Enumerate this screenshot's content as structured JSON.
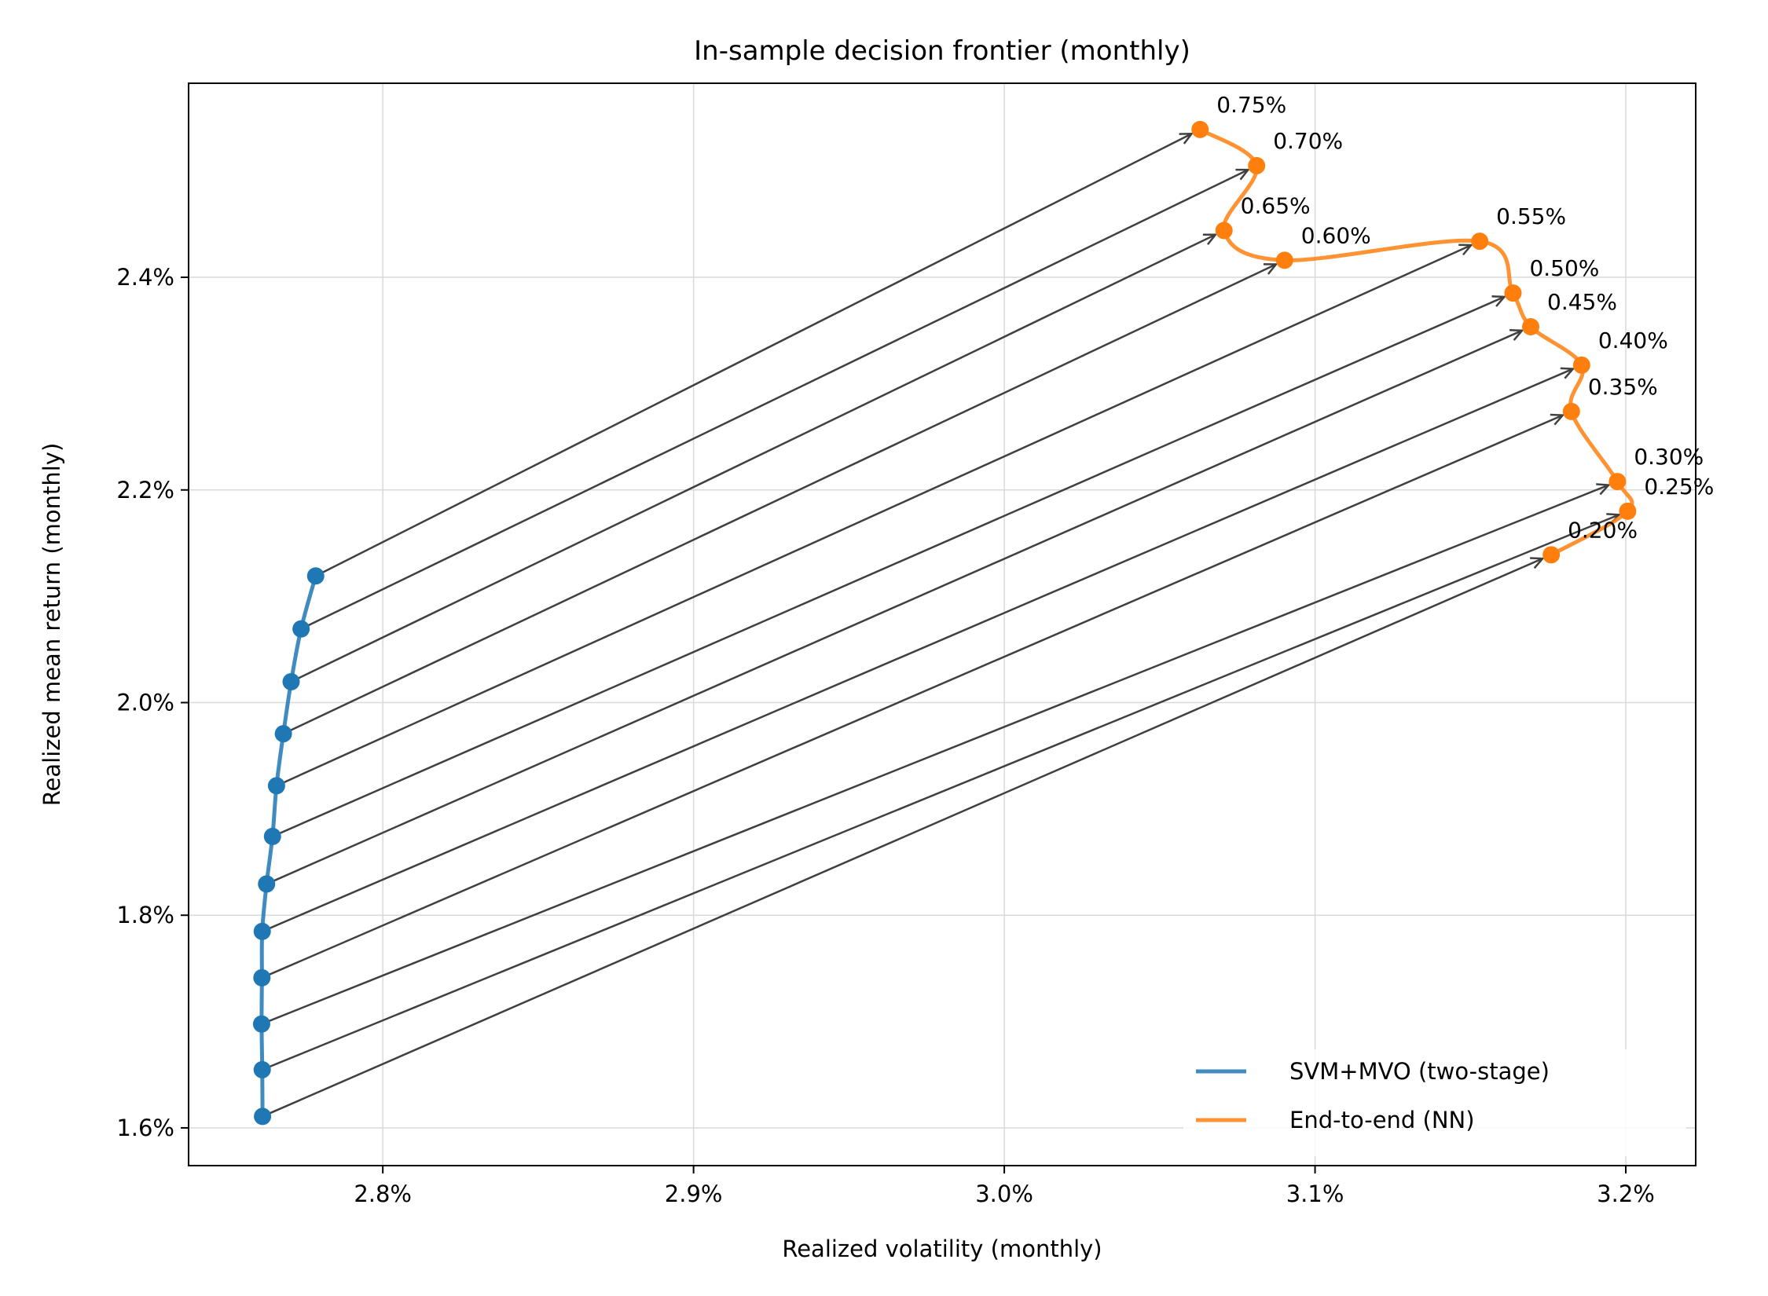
{
  "chart_data": {
    "type": "line",
    "title": "In-sample decision frontier (monthly)",
    "xlabel": "Realized volatility (monthly)",
    "ylabel": "Realized mean return (monthly)",
    "xlim": [
      2.7375,
      3.2225
    ],
    "ylim": [
      1.5645,
      2.5825
    ],
    "x_ticks": [
      {
        "value": 2.8,
        "label": "2.8%"
      },
      {
        "value": 2.9,
        "label": "2.9%"
      },
      {
        "value": 3.0,
        "label": "3.0%"
      },
      {
        "value": 3.1,
        "label": "3.1%"
      },
      {
        "value": 3.2,
        "label": "3.2%"
      }
    ],
    "y_ticks": [
      {
        "value": 1.6,
        "label": "1.6%"
      },
      {
        "value": 1.8,
        "label": "1.8%"
      },
      {
        "value": 2.0,
        "label": "2.0%"
      },
      {
        "value": 2.2,
        "label": "2.2%"
      },
      {
        "value": 2.4,
        "label": "2.4%"
      }
    ],
    "grid": true,
    "legend_position": "lower-right",
    "arrow_color": "#404040",
    "series": [
      {
        "name": "SVM+MVO (two-stage)",
        "color": "#1f77b4",
        "points": [
          {
            "x": 2.7613,
            "y": 1.6108
          },
          {
            "x": 2.7612,
            "y": 1.6547
          },
          {
            "x": 2.761,
            "y": 1.6977
          },
          {
            "x": 2.7611,
            "y": 1.7412
          },
          {
            "x": 2.7612,
            "y": 1.7848
          },
          {
            "x": 2.7626,
            "y": 1.8294
          },
          {
            "x": 2.7645,
            "y": 1.8741
          },
          {
            "x": 2.7658,
            "y": 1.9218
          },
          {
            "x": 2.768,
            "y": 1.9707
          },
          {
            "x": 2.7705,
            "y": 2.0196
          },
          {
            "x": 2.7737,
            "y": 2.0693
          },
          {
            "x": 2.7784,
            "y": 2.1191
          }
        ]
      },
      {
        "name": "End-to-end (NN)",
        "color": "#ff7f0e",
        "points": [
          {
            "x": 3.176,
            "y": 2.139,
            "label": "0.20%"
          },
          {
            "x": 3.2006,
            "y": 2.18,
            "label": "0.25%"
          },
          {
            "x": 3.1973,
            "y": 2.2079,
            "label": "0.30%"
          },
          {
            "x": 3.1825,
            "y": 2.2738,
            "label": "0.35%"
          },
          {
            "x": 3.1858,
            "y": 2.3174,
            "label": "0.40%"
          },
          {
            "x": 3.1694,
            "y": 2.3535,
            "label": "0.45%"
          },
          {
            "x": 3.1637,
            "y": 2.3852,
            "label": "0.50%"
          },
          {
            "x": 3.153,
            "y": 2.4339,
            "label": "0.55%"
          },
          {
            "x": 3.0902,
            "y": 2.416,
            "label": "0.60%"
          },
          {
            "x": 3.0707,
            "y": 2.444,
            "label": "0.65%"
          },
          {
            "x": 3.0812,
            "y": 2.505,
            "label": "0.70%"
          },
          {
            "x": 3.063,
            "y": 2.539,
            "label": "0.75%"
          }
        ]
      }
    ]
  }
}
